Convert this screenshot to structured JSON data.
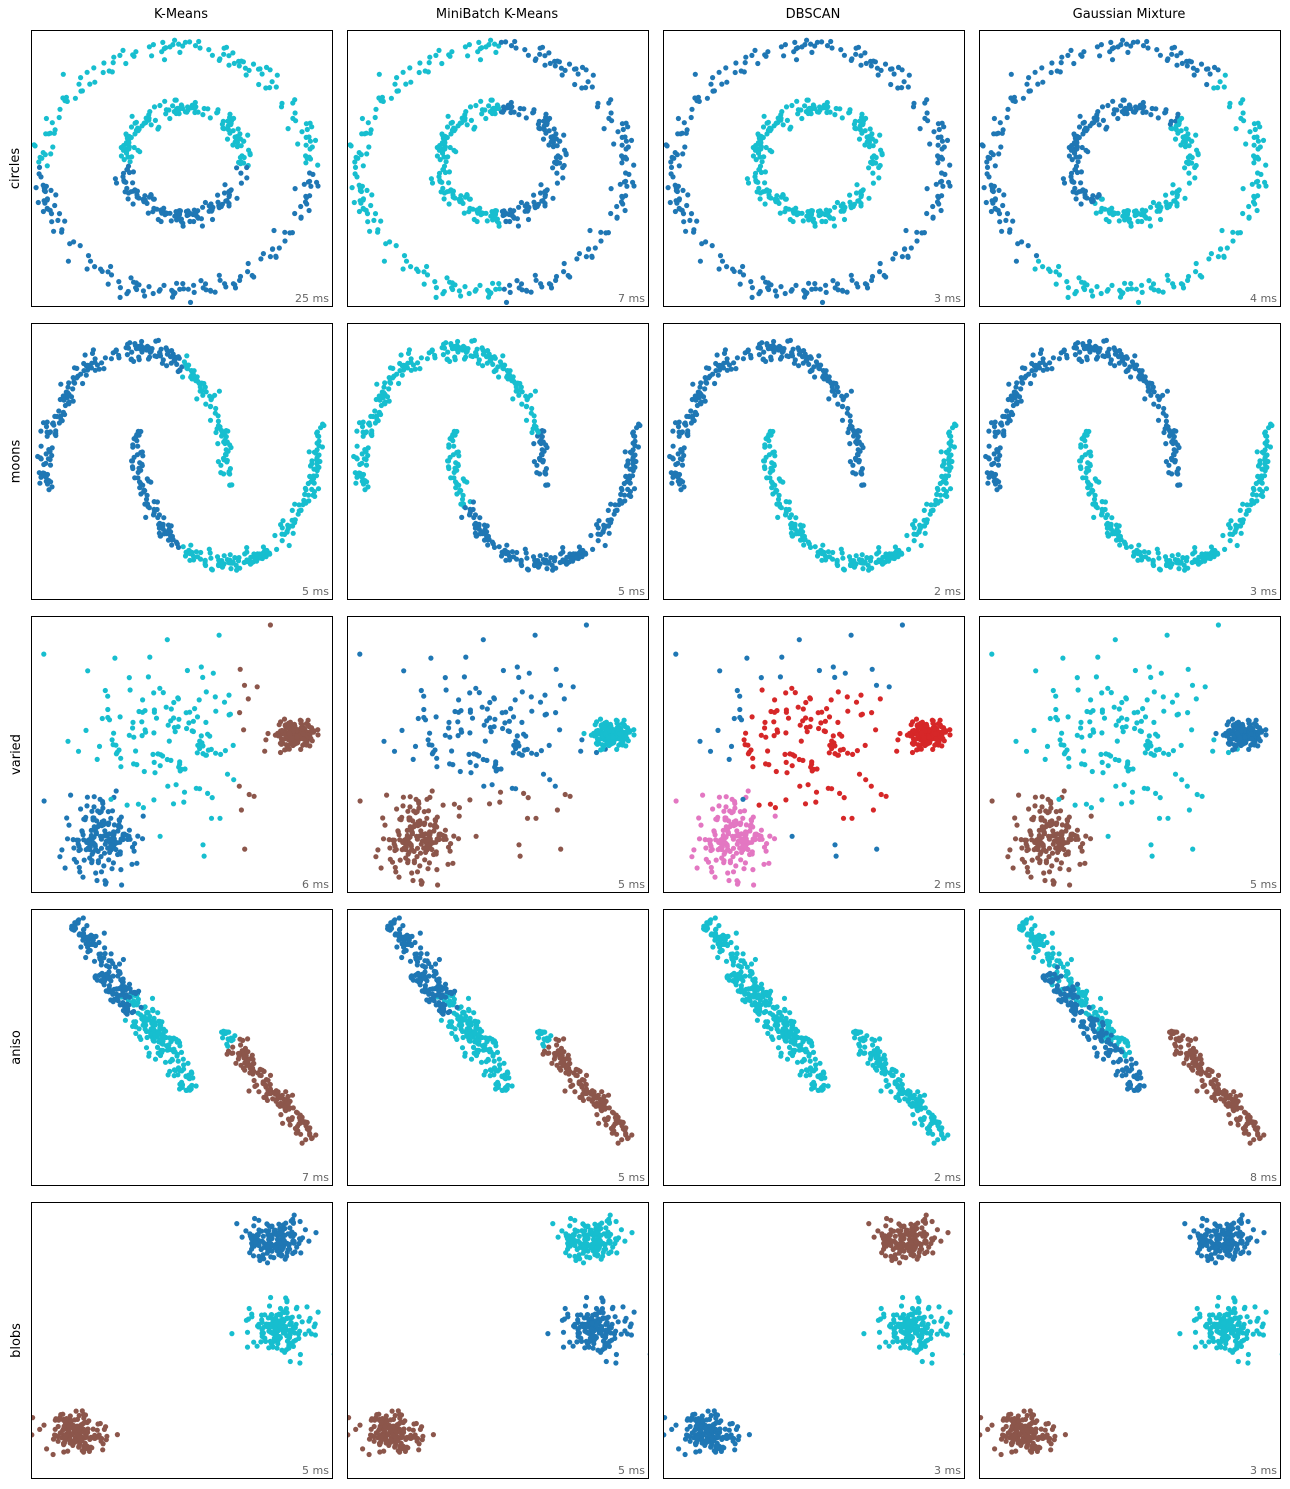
{
  "chart_data": {
    "type": "scatter",
    "algorithms": [
      "K-Means",
      "MiniBatch K-Means",
      "DBSCAN",
      "Gaussian Mixture"
    ],
    "datasets": [
      "circles",
      "moons",
      "varied",
      "aniso",
      "blobs"
    ],
    "colors": {
      "blue": "#1f77b4",
      "cyan": "#17becf",
      "brown": "#8c564b",
      "red": "#d62728",
      "pink": "#e377c2"
    },
    "timings": [
      [
        "25 ms",
        "7 ms",
        "3 ms",
        "4 ms"
      ],
      [
        "5 ms",
        "5 ms",
        "2 ms",
        "3 ms"
      ],
      [
        "6 ms",
        "5 ms",
        "2 ms",
        "5 ms"
      ],
      [
        "7 ms",
        "5 ms",
        "2 ms",
        "8 ms"
      ],
      [
        "5 ms",
        "5 ms",
        "3 ms",
        "3 ms"
      ]
    ],
    "grid": false,
    "axes_ticks": false,
    "panels": [
      {
        "dataset": "circles",
        "algorithm": "K-Means",
        "clusters": [
          {
            "color": "cyan",
            "shape": "ring-upper",
            "count": 250
          },
          {
            "color": "blue",
            "shape": "ring-lower",
            "count": 250
          }
        ]
      },
      {
        "dataset": "circles",
        "algorithm": "MiniBatch K-Means",
        "clusters": [
          {
            "color": "cyan",
            "shape": "ring-left",
            "count": 250
          },
          {
            "color": "blue",
            "shape": "ring-right",
            "count": 250
          }
        ]
      },
      {
        "dataset": "circles",
        "algorithm": "DBSCAN",
        "clusters": [
          {
            "color": "blue",
            "shape": "outer-ring",
            "count": 250
          },
          {
            "color": "cyan",
            "shape": "inner-ring",
            "count": 250
          }
        ]
      },
      {
        "dataset": "circles",
        "algorithm": "Gaussian Mixture",
        "clusters": [
          {
            "color": "cyan",
            "shape": "ring-upper-right",
            "count": 250
          },
          {
            "color": "blue",
            "shape": "ring-lower-left",
            "count": 250
          }
        ]
      },
      {
        "dataset": "moons",
        "algorithm": "K-Means",
        "clusters": [
          {
            "color": "blue",
            "shape": "left-half",
            "count": 250
          },
          {
            "color": "cyan",
            "shape": "right-half",
            "count": 250
          }
        ]
      },
      {
        "dataset": "moons",
        "algorithm": "MiniBatch K-Means",
        "clusters": [
          {
            "color": "cyan",
            "shape": "upper-left",
            "count": 250
          },
          {
            "color": "blue",
            "shape": "lower-right",
            "count": 250
          }
        ]
      },
      {
        "dataset": "moons",
        "algorithm": "DBSCAN",
        "clusters": [
          {
            "color": "blue",
            "shape": "upper-moon",
            "count": 250
          },
          {
            "color": "cyan",
            "shape": "lower-moon",
            "count": 250
          }
        ]
      },
      {
        "dataset": "moons",
        "algorithm": "Gaussian Mixture",
        "clusters": [
          {
            "color": "blue",
            "shape": "upper-moon",
            "count": 250
          },
          {
            "color": "cyan",
            "shape": "lower-moon",
            "count": 250
          }
        ]
      },
      {
        "dataset": "varied",
        "algorithm": "K-Means",
        "clusters": [
          {
            "color": "blue",
            "shape": "bottom-left-blob",
            "count": 170
          },
          {
            "color": "cyan",
            "shape": "middle-wide",
            "count": 160
          },
          {
            "color": "brown",
            "shape": "top-right-blob",
            "count": 170
          }
        ]
      },
      {
        "dataset": "varied",
        "algorithm": "MiniBatch K-Means",
        "clusters": [
          {
            "color": "brown",
            "shape": "bottom-left-blob",
            "count": 170
          },
          {
            "color": "blue",
            "shape": "middle-wide",
            "count": 160
          },
          {
            "color": "cyan",
            "shape": "top-right-blob",
            "count": 170
          }
        ]
      },
      {
        "dataset": "varied",
        "algorithm": "DBSCAN",
        "clusters": [
          {
            "color": "pink",
            "shape": "bottom-left-blob",
            "count": 170
          },
          {
            "color": "red",
            "shape": "middle-and-top-right",
            "count": 310
          },
          {
            "color": "blue",
            "shape": "noise",
            "count": 15
          }
        ]
      },
      {
        "dataset": "varied",
        "algorithm": "Gaussian Mixture",
        "clusters": [
          {
            "color": "brown",
            "shape": "bottom-left-blob",
            "count": 170
          },
          {
            "color": "cyan",
            "shape": "middle-wide",
            "count": 160
          },
          {
            "color": "blue",
            "shape": "top-right-blob",
            "count": 170
          }
        ]
      },
      {
        "dataset": "aniso",
        "algorithm": "K-Means",
        "clusters": [
          {
            "color": "blue",
            "shape": "upper-left-split",
            "count": 150
          },
          {
            "color": "cyan",
            "shape": "middle-split",
            "count": 180
          },
          {
            "color": "brown",
            "shape": "lower-right-streak",
            "count": 170
          }
        ]
      },
      {
        "dataset": "aniso",
        "algorithm": "MiniBatch K-Means",
        "clusters": [
          {
            "color": "blue",
            "shape": "upper-left-split",
            "count": 150
          },
          {
            "color": "cyan",
            "shape": "middle-split",
            "count": 180
          },
          {
            "color": "brown",
            "shape": "lower-right-streak",
            "count": 170
          }
        ]
      },
      {
        "dataset": "aniso",
        "algorithm": "DBSCAN",
        "clusters": [
          {
            "color": "cyan",
            "shape": "all-streaks",
            "count": 490
          },
          {
            "color": "blue",
            "shape": "noise",
            "count": 2
          }
        ]
      },
      {
        "dataset": "aniso",
        "algorithm": "Gaussian Mixture",
        "clusters": [
          {
            "color": "blue",
            "shape": "left-streak",
            "count": 165
          },
          {
            "color": "cyan",
            "shape": "middle-streak",
            "count": 165
          },
          {
            "color": "brown",
            "shape": "right-streak",
            "count": 170
          }
        ]
      },
      {
        "dataset": "blobs",
        "algorithm": "K-Means",
        "clusters": [
          {
            "color": "blue",
            "shape": "top-right-blob",
            "count": 167
          },
          {
            "color": "cyan",
            "shape": "middle-right-blob",
            "count": 167
          },
          {
            "color": "brown",
            "shape": "bottom-left-blob",
            "count": 166
          }
        ]
      },
      {
        "dataset": "blobs",
        "algorithm": "MiniBatch K-Means",
        "clusters": [
          {
            "color": "cyan",
            "shape": "top-right-blob",
            "count": 167
          },
          {
            "color": "blue",
            "shape": "middle-right-blob",
            "count": 167
          },
          {
            "color": "brown",
            "shape": "bottom-left-blob",
            "count": 166
          }
        ]
      },
      {
        "dataset": "blobs",
        "algorithm": "DBSCAN",
        "clusters": [
          {
            "color": "brown",
            "shape": "top-right-blob",
            "count": 167
          },
          {
            "color": "cyan",
            "shape": "middle-right-blob",
            "count": 167
          },
          {
            "color": "blue",
            "shape": "bottom-left-blob",
            "count": 166
          }
        ]
      },
      {
        "dataset": "blobs",
        "algorithm": "Gaussian Mixture",
        "clusters": [
          {
            "color": "blue",
            "shape": "top-right-blob",
            "count": 167
          },
          {
            "color": "cyan",
            "shape": "middle-right-blob",
            "count": 167
          },
          {
            "color": "brown",
            "shape": "bottom-left-blob",
            "count": 166
          }
        ]
      }
    ]
  }
}
